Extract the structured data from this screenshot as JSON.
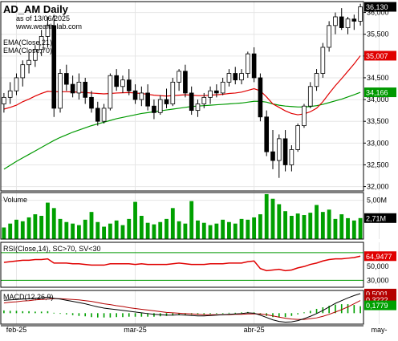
{
  "header": {
    "title": "AD_AM Daily",
    "asof": "as of 13/06/2025",
    "site": "www.wealth-lab.com"
  },
  "colors": {
    "up": "#ffffff",
    "down": "#000000",
    "ema21": "#e00000",
    "ema70": "#009900",
    "volume": "#00a000",
    "rsi": "#e00000",
    "macd": "#000000",
    "signal": "#b40000",
    "hist": "#00a000",
    "gridline": "#e6e6e6",
    "frame": "#000000",
    "price_badge": "#000000",
    "ema21_badge": "#e00000",
    "ema70_badge": "#009900",
    "volume_badge": "#000000",
    "rsi_badge": "#e00000",
    "macd_badge": "#b40000",
    "macd_badge2": "#00a000"
  },
  "chart_data": {
    "type": "candlestick",
    "x_labels": [
      {
        "i": 2,
        "label": "feb-25"
      },
      {
        "i": 21,
        "label": "mar-25"
      },
      {
        "i": 40,
        "label": "abr-25"
      },
      {
        "i": 60,
        "label": "may-"
      }
    ],
    "price": {
      "legend": [
        "EMA(Close,21)",
        "EMA(Close,70)"
      ],
      "ylim": [
        31900,
        36250
      ],
      "ticks": [
        32000,
        32500,
        33000,
        33500,
        34000,
        34500,
        35000,
        35500,
        36000
      ],
      "tick_labels": [
        "32,000",
        "32,500",
        "33,000",
        "33,500",
        "34,000",
        "34,500",
        "35,000",
        "35,500",
        "36,000"
      ],
      "last_close_label": "36,130",
      "ema21_label": "35,007",
      "ema70_label": "34,166",
      "ohlc": [
        [
          33900,
          34150,
          33700,
          34050
        ],
        [
          34050,
          34400,
          33900,
          34200
        ],
        [
          34200,
          34600,
          34100,
          34500
        ],
        [
          34500,
          34900,
          34300,
          34800
        ],
        [
          34800,
          35100,
          34600,
          34900
        ],
        [
          34900,
          35250,
          34750,
          35150
        ],
        [
          35150,
          35600,
          35000,
          35450
        ],
        [
          35450,
          35900,
          35200,
          35700
        ],
        [
          35700,
          35950,
          33600,
          33800
        ],
        [
          33800,
          34700,
          33700,
          34600
        ],
        [
          34600,
          34800,
          34200,
          34350
        ],
        [
          34350,
          34550,
          34050,
          34150
        ],
        [
          34150,
          34600,
          34000,
          34400
        ],
        [
          34400,
          34500,
          33900,
          34050
        ],
        [
          34050,
          34200,
          33700,
          33800
        ],
        [
          33800,
          33950,
          33400,
          33500
        ],
        [
          33500,
          33900,
          33450,
          33800
        ],
        [
          33800,
          34600,
          33750,
          34550
        ],
        [
          34550,
          34700,
          34200,
          34300
        ],
        [
          34300,
          34550,
          34150,
          34450
        ],
        [
          34450,
          34700,
          34100,
          34200
        ],
        [
          34200,
          34350,
          33900,
          34000
        ],
        [
          34000,
          34300,
          33850,
          34150
        ],
        [
          34150,
          34350,
          33750,
          33850
        ],
        [
          33850,
          34000,
          33550,
          33700
        ],
        [
          33700,
          34100,
          33650,
          34000
        ],
        [
          34000,
          34250,
          33800,
          33900
        ],
        [
          33900,
          34500,
          33850,
          34400
        ],
        [
          34400,
          34700,
          34200,
          34650
        ],
        [
          34650,
          34800,
          34050,
          34150
        ],
        [
          34150,
          34300,
          33650,
          33750
        ],
        [
          33750,
          34000,
          33600,
          33900
        ],
        [
          33900,
          34150,
          33800,
          34050
        ],
        [
          34050,
          34300,
          33900,
          34200
        ],
        [
          34200,
          34350,
          34050,
          34150
        ],
        [
          34150,
          34500,
          34100,
          34400
        ],
        [
          34400,
          34700,
          34300,
          34600
        ],
        [
          34600,
          34750,
          34350,
          34450
        ],
        [
          34450,
          34700,
          34350,
          34600
        ],
        [
          34600,
          35100,
          34500,
          35050
        ],
        [
          35050,
          35200,
          34400,
          34500
        ],
        [
          34500,
          34600,
          33500,
          33600
        ],
        [
          33600,
          33750,
          32700,
          32800
        ],
        [
          32800,
          33300,
          32400,
          32600
        ],
        [
          32600,
          33200,
          32200,
          33100
        ],
        [
          33100,
          33300,
          32350,
          32500
        ],
        [
          32500,
          32950,
          32350,
          32850
        ],
        [
          32850,
          33450,
          32800,
          33400
        ],
        [
          33400,
          33900,
          33350,
          33850
        ],
        [
          33850,
          34400,
          33800,
          34300
        ],
        [
          34300,
          34700,
          34200,
          34600
        ],
        [
          34600,
          35300,
          34500,
          35200
        ],
        [
          35200,
          35800,
          35100,
          35700
        ],
        [
          35700,
          36000,
          35500,
          35900
        ],
        [
          35900,
          36100,
          35600,
          35650
        ],
        [
          35650,
          35900,
          35500,
          35850
        ],
        [
          35850,
          35950,
          35600,
          35800
        ],
        [
          35800,
          36200,
          35700,
          36130
        ]
      ],
      "ema21": [
        33780,
        33820,
        33870,
        33950,
        34010,
        34080,
        34140,
        34190,
        34180,
        34180,
        34180,
        34175,
        34170,
        34160,
        34150,
        34140,
        34130,
        34140,
        34150,
        34155,
        34160,
        34150,
        34140,
        34120,
        34100,
        34090,
        34080,
        34090,
        34100,
        34110,
        34100,
        34090,
        34090,
        34100,
        34110,
        34120,
        34140,
        34150,
        34170,
        34210,
        34250,
        34200,
        34060,
        33900,
        33820,
        33740,
        33680,
        33650,
        33670,
        33720,
        33800,
        33950,
        34140,
        34320,
        34480,
        34650,
        34820,
        35007
      ],
      "ema70": [
        32400,
        32490,
        32580,
        32660,
        32740,
        32820,
        32900,
        32980,
        33060,
        33130,
        33190,
        33250,
        33300,
        33350,
        33400,
        33440,
        33480,
        33520,
        33560,
        33590,
        33620,
        33650,
        33680,
        33700,
        33720,
        33740,
        33760,
        33780,
        33800,
        33820,
        33840,
        33850,
        33860,
        33870,
        33880,
        33890,
        33900,
        33910,
        33920,
        33940,
        33960,
        33960,
        33940,
        33900,
        33870,
        33850,
        33840,
        33830,
        33830,
        33840,
        33860,
        33890,
        33930,
        33970,
        34010,
        34060,
        34110,
        34166
      ]
    },
    "volume": {
      "title": "Volume",
      "ylim": [
        0,
        6000000
      ],
      "tick_labels": [
        "5,00M"
      ],
      "ticks": [
        5000000
      ],
      "last_label": "2,71M",
      "values": [
        1.5,
        2.0,
        2.5,
        2.3,
        2.8,
        3.2,
        3.0,
        4.7,
        4.0,
        2.6,
        2.2,
        2.0,
        1.8,
        2.5,
        3.5,
        2.2,
        1.6,
        2.0,
        2.4,
        1.8,
        2.6,
        4.8,
        3.0,
        2.1,
        1.9,
        2.2,
        2.6,
        4.0,
        2.3,
        2.0,
        4.9,
        2.4,
        2.1,
        1.8,
        2.0,
        2.5,
        2.2,
        2.0,
        2.6,
        2.5,
        2.8,
        3.2,
        5.8,
        5.2,
        4.5,
        3.6,
        3.0,
        3.3,
        3.1,
        3.4,
        4.4,
        3.5,
        3.8,
        2.6,
        3.2,
        2.7,
        2.4,
        2.71
      ]
    },
    "rsi": {
      "title": "RSI(Close,14), SC>70, SV<30",
      "ylim": [
        20,
        85
      ],
      "levels": [
        30,
        70
      ],
      "tick_labels": [
        "30,000",
        "50,000"
      ],
      "ticks": [
        30,
        50
      ],
      "last_label": "64,9477",
      "values": [
        56,
        57,
        58,
        59,
        59,
        60,
        60,
        61,
        55,
        55,
        55,
        54,
        54,
        53,
        52,
        52,
        52,
        54,
        54,
        54,
        54,
        53,
        54,
        53,
        53,
        53,
        53,
        54,
        55,
        54,
        53,
        53,
        53,
        54,
        54,
        54,
        55,
        55,
        55,
        57,
        58,
        47,
        44,
        45,
        46,
        44,
        45,
        48,
        50,
        53,
        55,
        58,
        60,
        61,
        61,
        62,
        63,
        64.95
      ]
    },
    "macd": {
      "title": "MACD(12,26,9)",
      "ylim": [
        -0.28,
        0.58
      ],
      "macd_label": "0,5001",
      "signal_label": "0,3222",
      "hist_label": "0,1779",
      "macd": [
        0.33,
        0.34,
        0.35,
        0.36,
        0.37,
        0.38,
        0.39,
        0.41,
        0.38,
        0.36,
        0.33,
        0.3,
        0.27,
        0.24,
        0.2,
        0.16,
        0.13,
        0.11,
        0.09,
        0.07,
        0.05,
        0.03,
        0.01,
        -0.01,
        -0.03,
        -0.04,
        -0.05,
        -0.05,
        -0.04,
        -0.05,
        -0.06,
        -0.07,
        -0.07,
        -0.06,
        -0.05,
        -0.04,
        -0.03,
        -0.02,
        -0.01,
        0.01,
        0.0,
        -0.05,
        -0.11,
        -0.17,
        -0.21,
        -0.23,
        -0.22,
        -0.19,
        -0.14,
        -0.08,
        -0.01,
        0.07,
        0.16,
        0.25,
        0.32,
        0.39,
        0.45,
        0.5001
      ],
      "signal": [
        0.26,
        0.28,
        0.29,
        0.31,
        0.32,
        0.34,
        0.35,
        0.36,
        0.37,
        0.37,
        0.36,
        0.35,
        0.34,
        0.32,
        0.3,
        0.27,
        0.24,
        0.22,
        0.19,
        0.17,
        0.14,
        0.12,
        0.1,
        0.08,
        0.06,
        0.04,
        0.02,
        0.01,
        0.0,
        -0.01,
        -0.02,
        -0.03,
        -0.04,
        -0.04,
        -0.04,
        -0.04,
        -0.04,
        -0.03,
        -0.03,
        -0.02,
        -0.02,
        -0.02,
        -0.04,
        -0.07,
        -0.1,
        -0.13,
        -0.15,
        -0.16,
        -0.16,
        -0.14,
        -0.12,
        -0.08,
        -0.03,
        0.03,
        0.09,
        0.16,
        0.24,
        0.3222
      ]
    }
  }
}
